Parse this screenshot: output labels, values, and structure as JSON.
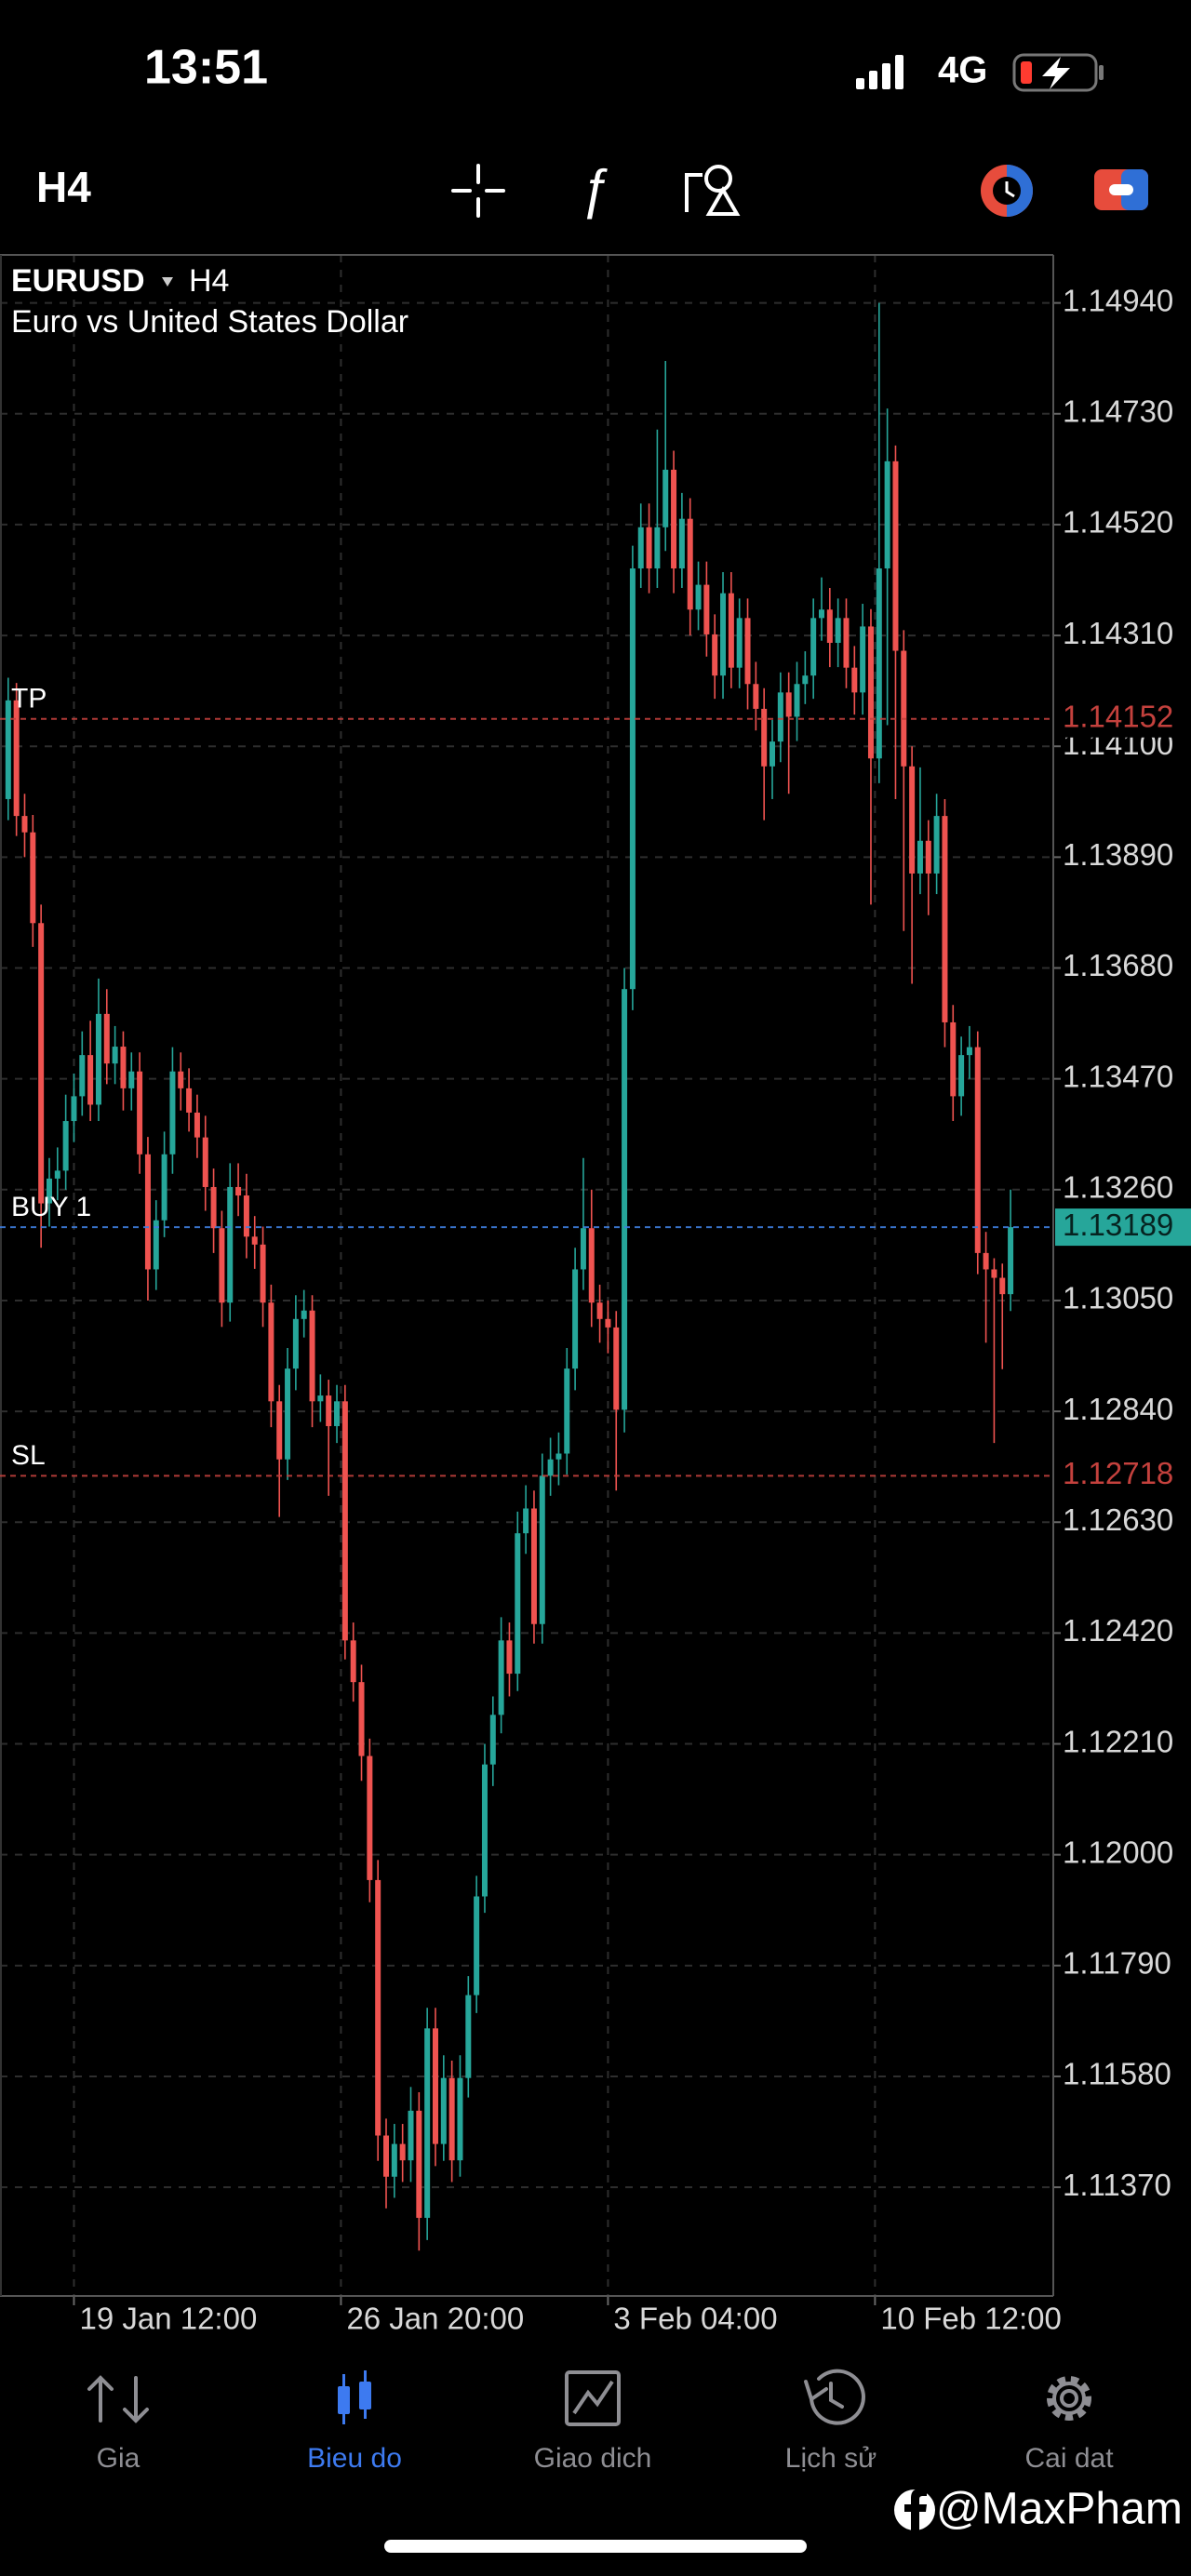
{
  "status": {
    "time": "13:51",
    "network": "4G"
  },
  "toolbar": {
    "timeframe": "H4"
  },
  "chart_data": {
    "type": "candlestick",
    "symbol": "EURUSD",
    "timeframe": "H4",
    "description": "Euro vs United States Dollar",
    "up_color": "#26a69a",
    "down_color": "#ef5350",
    "grid": true,
    "xlim": [
      -1,
      127.2
    ],
    "xticks": [
      {
        "value": 8,
        "label": "19 Jan 12:00"
      },
      {
        "value": 40.5,
        "label": "26 Jan 20:00"
      },
      {
        "value": 73,
        "label": "3 Feb 04:00"
      },
      {
        "value": 105.5,
        "label": "10 Feb 12:00"
      }
    ],
    "ylim": [
      1.11164,
      1.15031
    ],
    "yticks": [
      {
        "value": 1.1494,
        "label": "1.14940"
      },
      {
        "value": 1.1473,
        "label": "1.14730"
      },
      {
        "value": 1.1452,
        "label": "1.14520"
      },
      {
        "value": 1.1431,
        "label": "1.14310"
      },
      {
        "value": 1.141,
        "label": "1.14100"
      },
      {
        "value": 1.1389,
        "label": "1.13890"
      },
      {
        "value": 1.1368,
        "label": "1.13680"
      },
      {
        "value": 1.1347,
        "label": "1.13470"
      },
      {
        "value": 1.1326,
        "label": "1.13260"
      },
      {
        "value": 1.1305,
        "label": "1.13050"
      },
      {
        "value": 1.1284,
        "label": "1.12840"
      },
      {
        "value": 1.1263,
        "label": "1.12630"
      },
      {
        "value": 1.1242,
        "label": "1.12420"
      },
      {
        "value": 1.1221,
        "label": "1.12210"
      },
      {
        "value": 1.12,
        "label": "1.12000"
      },
      {
        "value": 1.1179,
        "label": "1.11790"
      },
      {
        "value": 1.1158,
        "label": "1.11580"
      },
      {
        "value": 1.1137,
        "label": "1.11370"
      }
    ],
    "levels": [
      {
        "name": "TP",
        "value": 1.14152,
        "color": "#c4413d",
        "box": "#000000"
      },
      {
        "name": "BUY 1",
        "value": 1.13189,
        "color": "#3f7fe0",
        "box": "#26a69a"
      },
      {
        "name": "SL",
        "value": 1.12718,
        "color": "#c4413d",
        "box": "#000000"
      }
    ],
    "open": [
      1.14,
      1.14187,
      1.13968,
      1.13937,
      1.13765,
      1.13234,
      1.13281,
      1.13296,
      1.1339,
      1.13437,
      1.13515,
      1.13421,
      1.13593,
      1.13499,
      1.13531,
      1.13452,
      1.13484,
      1.13327,
      1.13109,
      1.13202,
      1.13327,
      1.13484,
      1.13452,
      1.13406,
      1.13359,
      1.13265,
      1.13187,
      1.13046,
      1.13265,
      1.13249,
      1.13171,
      1.13156,
      1.13046,
      1.12859,
      1.12749,
      1.12921,
      1.13015,
      1.13031,
      1.12859,
      1.1287,
      1.12812,
      1.12859,
      1.12406,
      1.12327,
      1.12187,
      1.11952,
      1.11468,
      1.1139,
      1.11452,
      1.11421,
      1.11515,
      1.11312,
      1.11671,
      1.11452,
      1.11577,
      1.11421,
      1.11577,
      1.11734,
      1.11921,
      1.12171,
      1.12265,
      1.12406,
      1.12343,
      1.12609,
      1.12656,
      1.12437,
      1.12718,
      1.12749,
      1.1276,
      1.12921,
      1.13109,
      1.13187,
      1.13046,
      1.13015,
      1.12999,
      1.12843,
      1.1364,
      1.14437,
      1.14515,
      1.14437,
      1.14515,
      1.14624,
      1.14437,
      1.14531,
      1.14359,
      1.14406,
      1.14312,
      1.14234,
      1.1439,
      1.14249,
      1.14343,
      1.14218,
      1.14171,
      1.14062,
      1.14109,
      1.14202,
      1.14156,
      1.14218,
      1.14234,
      1.14343,
      1.14359,
      1.14296,
      1.14343,
      1.14249,
      1.14202,
      1.14327,
      1.14077,
      1.14437,
      1.1464,
      1.14281,
      1.14062,
      1.13859,
      1.13921,
      1.13859,
      1.13968,
      1.13577,
      1.13437,
      1.13515,
      1.1353,
      1.1314,
      1.13109,
      1.13093,
      1.13062
    ],
    "close": [
      1.14187,
      1.13968,
      1.13937,
      1.13765,
      1.13234,
      1.13281,
      1.13296,
      1.1339,
      1.13437,
      1.13515,
      1.13421,
      1.13593,
      1.13499,
      1.13531,
      1.13452,
      1.13484,
      1.13327,
      1.13109,
      1.13202,
      1.13327,
      1.13484,
      1.13452,
      1.13406,
      1.13359,
      1.13265,
      1.13187,
      1.13046,
      1.13265,
      1.13249,
      1.13171,
      1.13156,
      1.13046,
      1.12859,
      1.12749,
      1.12921,
      1.13015,
      1.13031,
      1.12859,
      1.1287,
      1.12812,
      1.12859,
      1.12406,
      1.12327,
      1.12187,
      1.11952,
      1.11468,
      1.1139,
      1.11452,
      1.11421,
      1.11515,
      1.11312,
      1.11671,
      1.11452,
      1.11577,
      1.11421,
      1.11577,
      1.11734,
      1.11921,
      1.12171,
      1.12265,
      1.12406,
      1.12343,
      1.12609,
      1.12656,
      1.12437,
      1.12718,
      1.12749,
      1.1276,
      1.12921,
      1.13109,
      1.13187,
      1.13046,
      1.13015,
      1.12999,
      1.12843,
      1.1364,
      1.14437,
      1.14515,
      1.14437,
      1.14515,
      1.14624,
      1.14437,
      1.14531,
      1.14359,
      1.14406,
      1.14312,
      1.14234,
      1.1439,
      1.14249,
      1.14343,
      1.14218,
      1.14171,
      1.14062,
      1.14109,
      1.14202,
      1.14156,
      1.14218,
      1.14234,
      1.14343,
      1.14359,
      1.14296,
      1.14343,
      1.14249,
      1.14202,
      1.14327,
      1.14077,
      1.14437,
      1.1464,
      1.14281,
      1.14062,
      1.13859,
      1.13921,
      1.13859,
      1.13968,
      1.13577,
      1.13437,
      1.13515,
      1.1353,
      1.1314,
      1.13109,
      1.13093,
      1.13062,
      1.13189
    ],
    "high": [
      1.1423,
      1.1422,
      1.1401,
      1.1397,
      1.138,
      1.1332,
      1.1334,
      1.1344,
      1.1348,
      1.1356,
      1.1358,
      1.1366,
      1.1364,
      1.1357,
      1.1356,
      1.1352,
      1.1352,
      1.1336,
      1.1324,
      1.1337,
      1.1353,
      1.1352,
      1.1349,
      1.1344,
      1.134,
      1.133,
      1.1322,
      1.1331,
      1.1331,
      1.1329,
      1.1321,
      1.1319,
      1.1308,
      1.1289,
      1.1296,
      1.1306,
      1.1307,
      1.1306,
      1.1291,
      1.129,
      1.1289,
      1.1289,
      1.1244,
      1.1236,
      1.1222,
      1.1199,
      1.115,
      1.1149,
      1.1149,
      1.1156,
      1.1155,
      1.1171,
      1.1171,
      1.1162,
      1.1161,
      1.1162,
      1.1177,
      1.1196,
      1.1221,
      1.123,
      1.1245,
      1.1244,
      1.1265,
      1.127,
      1.1269,
      1.1276,
      1.1279,
      1.128,
      1.1296,
      1.1315,
      1.1332,
      1.1326,
      1.1308,
      1.1305,
      1.1303,
      1.1368,
      1.1448,
      1.1456,
      1.1456,
      1.147,
      1.1483,
      1.1466,
      1.1458,
      1.1457,
      1.1445,
      1.1445,
      1.1435,
      1.1443,
      1.1443,
      1.1438,
      1.1438,
      1.1426,
      1.1421,
      1.1415,
      1.1424,
      1.1424,
      1.1426,
      1.1428,
      1.1438,
      1.1442,
      1.144,
      1.1438,
      1.1438,
      1.1429,
      1.1437,
      1.1436,
      1.1494,
      1.1474,
      1.1467,
      1.1432,
      1.141,
      1.1406,
      1.1396,
      1.1401,
      1.14,
      1.1361,
      1.1355,
      1.1357,
      1.1356,
      1.1318,
      1.1313,
      1.1312,
      1.1326
    ],
    "low": [
      1.1396,
      1.1393,
      1.1389,
      1.1372,
      1.1315,
      1.1319,
      1.1324,
      1.1326,
      1.1335,
      1.134,
      1.1339,
      1.1339,
      1.1346,
      1.1346,
      1.1341,
      1.1341,
      1.1329,
      1.1305,
      1.1307,
      1.1317,
      1.1329,
      1.1341,
      1.1337,
      1.1332,
      1.1322,
      1.1314,
      1.13,
      1.1301,
      1.1321,
      1.1313,
      1.1311,
      1.13,
      1.1281,
      1.1264,
      1.1271,
      1.1288,
      1.1298,
      1.1281,
      1.1282,
      1.1268,
      1.1278,
      1.1237,
      1.1229,
      1.1214,
      1.1191,
      1.1142,
      1.1133,
      1.1135,
      1.1138,
      1.1138,
      1.1125,
      1.1127,
      1.1141,
      1.1142,
      1.1138,
      1.1139,
      1.1154,
      1.117,
      1.1189,
      1.1213,
      1.1223,
      1.123,
      1.1231,
      1.1257,
      1.124,
      1.124,
      1.1268,
      1.127,
      1.1272,
      1.1288,
      1.1307,
      1.13,
      1.1297,
      1.1295,
      1.1269,
      1.128,
      1.136,
      1.144,
      1.1439,
      1.144,
      1.1447,
      1.1439,
      1.144,
      1.1431,
      1.1432,
      1.1427,
      1.1419,
      1.1419,
      1.1421,
      1.1421,
      1.1417,
      1.1413,
      1.1396,
      1.14,
      1.1407,
      1.1401,
      1.1411,
      1.1418,
      1.1419,
      1.143,
      1.1425,
      1.1425,
      1.1421,
      1.1416,
      1.1416,
      1.138,
      1.1403,
      1.1414,
      1.14,
      1.1375,
      1.1365,
      1.1382,
      1.1378,
      1.1382,
      1.1353,
      1.1339,
      1.134,
      1.1347,
      1.131,
      1.1297,
      1.1278,
      1.1292,
      1.1303
    ]
  },
  "tabs": [
    {
      "label": "Gia"
    },
    {
      "label": "Bieu do"
    },
    {
      "label": "Giao dich"
    },
    {
      "label": "Lịch sử"
    },
    {
      "label": "Cai dat"
    }
  ],
  "watermark": "@MaxPham"
}
